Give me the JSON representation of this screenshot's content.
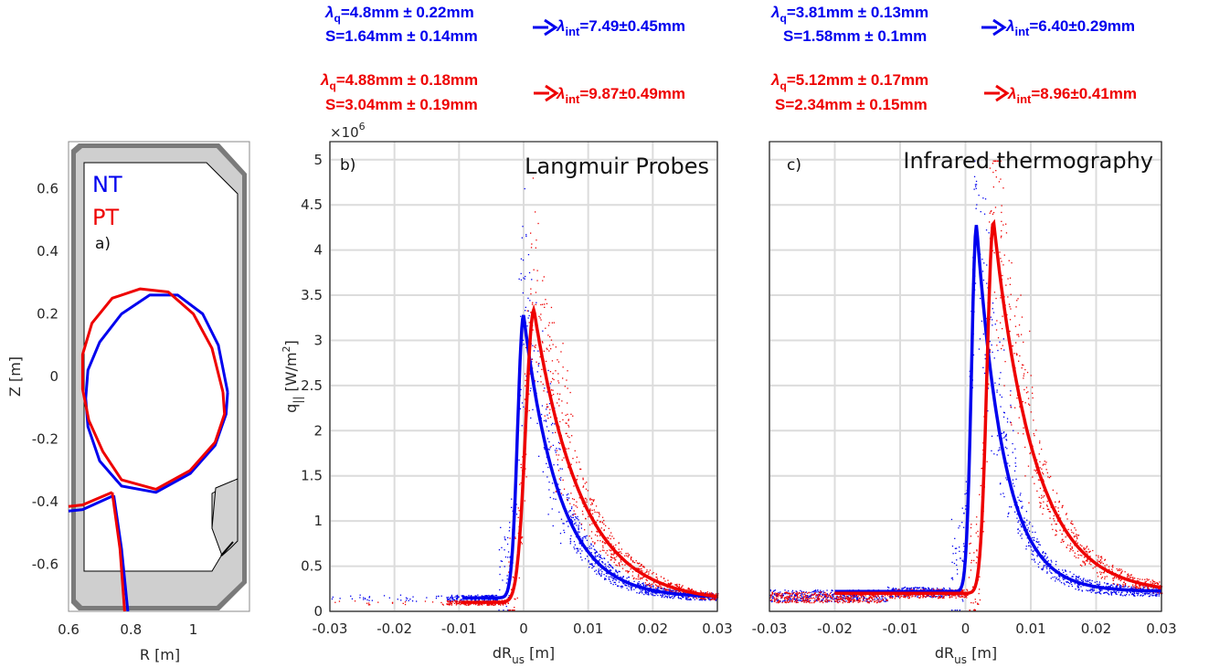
{
  "colors": {
    "nt": "#0000ee",
    "pt": "#ee0000",
    "wall": "#c8c8c8",
    "wallEdge": "#7a7a7a"
  },
  "annotations": {
    "b_blue": {
      "lq": "=4.8mm ± 0.22mm",
      "s": "S=1.64mm ± 0.14mm",
      "lint": "=7.49±0.45mm"
    },
    "b_red": {
      "lq": "=4.88mm ± 0.18mm",
      "s": "S=3.04mm ± 0.19mm",
      "lint": "=9.87±0.49mm"
    },
    "c_blue": {
      "lq": "=3.81mm ± 0.13mm",
      "s": "S=1.58mm ± 0.1mm",
      "lint": "=6.40±0.29mm"
    },
    "c_red": {
      "lq": "=5.12mm ± 0.17mm",
      "s": "S=2.34mm ± 0.15mm",
      "lint": "=8.96±0.41mm"
    },
    "lambda": "λ",
    "lq_sub": "q",
    "lint_sub": "int"
  },
  "panel_a": {
    "label": "a)",
    "legend": [
      "NT",
      "PT"
    ],
    "xlabel": "R [m]",
    "ylabel": "Z [m]",
    "xticks": [
      "0.6",
      "0.8",
      "1"
    ],
    "yticks": [
      "0.6",
      "0.4",
      "0.2",
      "0",
      "-0.2",
      "-0.4",
      "-0.6"
    ]
  },
  "panel_b": {
    "label": "b)",
    "title": "Langmuir Probes",
    "scale": "×10",
    "scale_exp": "6"
  },
  "panel_c": {
    "label": "c)",
    "title": "Infrared thermography"
  },
  "axes": {
    "xlabel_main": "dR",
    "xlabel_sub": "us",
    "xlabel_unit": " [m]",
    "ylabel_main": "q",
    "ylabel_sub": "||",
    "ylabel_unit": " [W/m",
    "ylabel_sup": "2",
    "ylabel_close": "]",
    "xticks_b": [
      "-0.03",
      "-0.02",
      "-0.01",
      "0",
      "0.01",
      "0.02",
      "0.03"
    ],
    "xticks_c": [
      "-0.03",
      "-0.02",
      "-0.01",
      "0",
      "0.01",
      "0.02",
      "0.03"
    ],
    "yticks_b": [
      "0",
      "0.5",
      "1",
      "1.5",
      "2",
      "2.5",
      "3",
      "3.5",
      "4",
      "4.5",
      "5"
    ]
  },
  "chart_data": [
    {
      "type": "line",
      "panel": "a",
      "xlabel": "R [m]",
      "ylabel": "Z [m]",
      "xlim": [
        0.6,
        1.18
      ],
      "ylim": [
        -0.75,
        0.75
      ],
      "series": [
        {
          "name": "NT",
          "x": [
            1.11,
            1.08,
            1.03,
            0.95,
            0.86,
            0.77,
            0.7,
            0.662,
            0.655,
            0.662,
            0.7,
            0.77,
            0.88,
            0.99,
            1.07,
            1.105,
            1.11
          ],
          "y": [
            -0.05,
            0.1,
            0.2,
            0.26,
            0.26,
            0.2,
            0.11,
            0.02,
            -0.07,
            -0.16,
            -0.27,
            -0.35,
            -0.37,
            -0.31,
            -0.22,
            -0.12,
            -0.05
          ]
        },
        {
          "name": "PT",
          "x": [
            1.095,
            1.06,
            1.0,
            0.92,
            0.83,
            0.74,
            0.675,
            0.645,
            0.645,
            0.665,
            0.71,
            0.77,
            0.88,
            0.99,
            1.07,
            1.1,
            1.095
          ],
          "y": [
            -0.05,
            0.09,
            0.2,
            0.27,
            0.28,
            0.25,
            0.17,
            0.07,
            -0.04,
            -0.14,
            -0.24,
            -0.33,
            -0.36,
            -0.3,
            -0.21,
            -0.12,
            -0.05
          ]
        }
      ]
    },
    {
      "type": "scatter",
      "panel": "b",
      "title": "Langmuir Probes",
      "xlim": [
        -0.03,
        0.03
      ],
      "ylim": [
        0,
        5.2
      ],
      "y_multiplier": 1000000,
      "grid": true,
      "fits": [
        {
          "name": "NT",
          "x0": 0.0,
          "peak": 3.28,
          "base": 0.15,
          "rise": 0.0013,
          "decay": 0.0055,
          "xmin": -0.0095,
          "xmax": 0.03
        },
        {
          "name": "PT",
          "x0": 0.0016,
          "peak": 3.34,
          "base": 0.1,
          "rise": 0.0018,
          "decay": 0.0072,
          "xmin": -0.0095,
          "xmax": 0.03
        }
      ]
    },
    {
      "type": "scatter",
      "panel": "c",
      "title": "Infrared thermography",
      "xlim": [
        -0.03,
        0.03
      ],
      "ylim": [
        0,
        5.2
      ],
      "y_multiplier": 1000000,
      "grid": true,
      "fits": [
        {
          "name": "NT",
          "x0": 0.0017,
          "peak": 4.28,
          "base": 0.22,
          "rise": 0.0011,
          "decay": 0.0042,
          "xmin": -0.02,
          "xmax": 0.03
        },
        {
          "name": "PT",
          "x0": 0.0043,
          "peak": 4.32,
          "base": 0.2,
          "rise": 0.0014,
          "decay": 0.0062,
          "xmin": -0.02,
          "xmax": 0.03
        }
      ]
    }
  ]
}
